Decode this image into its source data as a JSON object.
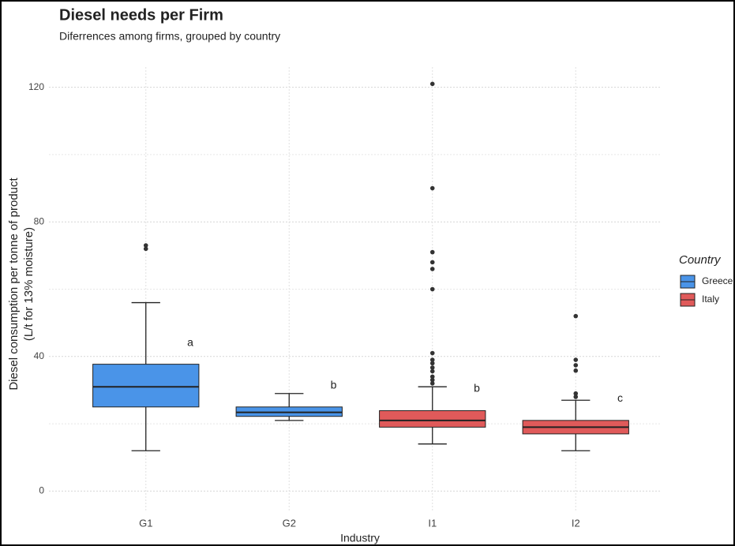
{
  "chart_data": {
    "type": "box",
    "title": "Diesel needs per Firm",
    "subtitle": "Diferrences among firms, grouped by country",
    "x_label": "Industry",
    "y_label": [
      "Diesel consumption per tonne of product",
      "(L/t for 13% moisture)"
    ],
    "legend_title": "Country",
    "categories": [
      "G1",
      "G2",
      "I1",
      "I2"
    ],
    "ylim": [
      -6,
      126
    ],
    "yticks": [
      0,
      40,
      80,
      120
    ],
    "minor_yticks": [
      20,
      60,
      100
    ],
    "grid": true,
    "series": [
      {
        "name": "Greece",
        "color": "#4a94e8",
        "boxes": [
          {
            "min": 12,
            "q1": 25,
            "median": 31,
            "q3": 37.7,
            "max": 56,
            "outliers": [
              72,
              73
            ],
            "annotation": {
              "text": "a",
              "y": 44
            }
          },
          {
            "min": 21,
            "q1": 22.2,
            "median": 23.4,
            "q3": 25,
            "max": 29,
            "outliers": [],
            "annotation": {
              "text": "b",
              "y": 31.3
            }
          },
          null,
          null
        ]
      },
      {
        "name": "Italy",
        "color": "#e05a5a",
        "boxes": [
          null,
          null,
          {
            "min": 14,
            "q1": 19,
            "median": 21,
            "q3": 23.9,
            "max": 31,
            "outliers": [
              121,
              90,
              71,
              68,
              66,
              60,
              41,
              39,
              38,
              36.7,
              35.6,
              34,
              33,
              32
            ],
            "annotation": {
              "text": "b",
              "y": 30.4
            }
          },
          {
            "min": 12,
            "q1": 17,
            "median": 19,
            "q3": 21,
            "max": 27,
            "outliers": [
              52,
              39,
              37.4,
              35.8,
              29,
              28
            ],
            "annotation": {
              "text": "c",
              "y": 27.4
            }
          }
        ]
      }
    ]
  }
}
